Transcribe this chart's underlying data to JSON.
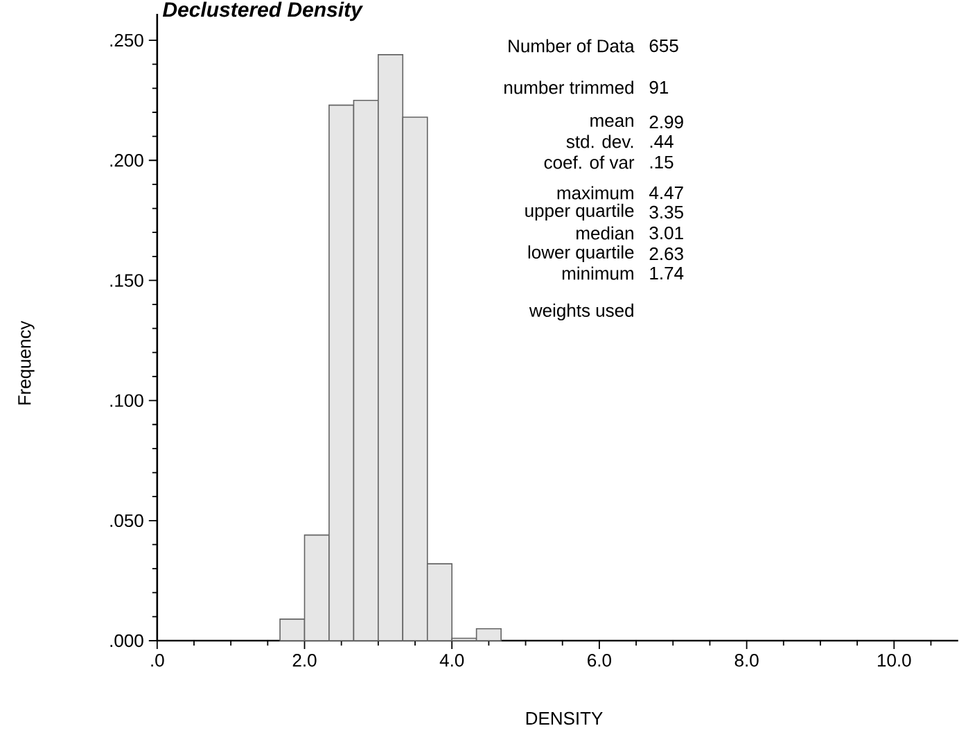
{
  "chart_data": {
    "type": "histogram",
    "title": "Declustered Density",
    "xlabel": "DENSITY",
    "ylabel": "Frequency",
    "bins": [
      1.667,
      2.0,
      2.333,
      2.667,
      3.0,
      3.333,
      3.667,
      4.0,
      4.333,
      4.667
    ],
    "values": [
      0.009,
      0.044,
      0.223,
      0.225,
      0.244,
      0.218,
      0.032,
      0.001,
      0.005
    ],
    "color": "#e6e6e6",
    "xlim": [
      0,
      10.87
    ],
    "ylim": [
      0,
      0.261
    ],
    "xticks": [
      {
        "value": 0,
        "label": ".0"
      },
      {
        "value": 0.5,
        "label": null
      },
      {
        "value": 1,
        "label": null
      },
      {
        "value": 1.5,
        "label": null
      },
      {
        "value": 2,
        "label": "2.0"
      },
      {
        "value": 2.5,
        "label": null
      },
      {
        "value": 3,
        "label": null
      },
      {
        "value": 3.5,
        "label": null
      },
      {
        "value": 4,
        "label": "4.0"
      },
      {
        "value": 4.5,
        "label": null
      },
      {
        "value": 5,
        "label": null
      },
      {
        "value": 5.5,
        "label": null
      },
      {
        "value": 6,
        "label": "6.0"
      },
      {
        "value": 6.5,
        "label": null
      },
      {
        "value": 7,
        "label": null
      },
      {
        "value": 7.5,
        "label": null
      },
      {
        "value": 8,
        "label": "8.0"
      },
      {
        "value": 8.5,
        "label": null
      },
      {
        "value": 9,
        "label": null
      },
      {
        "value": 9.5,
        "label": null
      },
      {
        "value": 10,
        "label": "10.0"
      },
      {
        "value": 10.5,
        "label": null
      }
    ],
    "yticks": [
      {
        "value": 0,
        "label": ".000"
      },
      {
        "value": 0.01,
        "label": null
      },
      {
        "value": 0.02,
        "label": null
      },
      {
        "value": 0.03,
        "label": null
      },
      {
        "value": 0.04,
        "label": null
      },
      {
        "value": 0.05,
        "label": ".050"
      },
      {
        "value": 0.06,
        "label": null
      },
      {
        "value": 0.07,
        "label": null
      },
      {
        "value": 0.08,
        "label": null
      },
      {
        "value": 0.09,
        "label": null
      },
      {
        "value": 0.1,
        "label": ".100"
      },
      {
        "value": 0.11,
        "label": null
      },
      {
        "value": 0.12,
        "label": null
      },
      {
        "value": 0.13,
        "label": null
      },
      {
        "value": 0.14,
        "label": null
      },
      {
        "value": 0.15,
        "label": ".150"
      },
      {
        "value": 0.16,
        "label": null
      },
      {
        "value": 0.17,
        "label": null
      },
      {
        "value": 0.18,
        "label": null
      },
      {
        "value": 0.19,
        "label": null
      },
      {
        "value": 0.2,
        "label": ".200"
      },
      {
        "value": 0.21,
        "label": null
      },
      {
        "value": 0.22,
        "label": null
      },
      {
        "value": 0.23,
        "label": null
      },
      {
        "value": 0.24,
        "label": null
      },
      {
        "value": 0.25,
        "label": ".250"
      }
    ],
    "annotations": [
      "Number of Data",
      "655",
      "number trimmed",
      "91",
      "mean",
      "2.99",
      "std. dev.",
      ".44",
      "coef. of var",
      ".15",
      "maximum",
      "4.47",
      "upper quartile",
      "3.35",
      "median",
      "3.01",
      "lower quartile",
      "2.63",
      "minimum",
      "1.74",
      "weights used"
    ]
  }
}
